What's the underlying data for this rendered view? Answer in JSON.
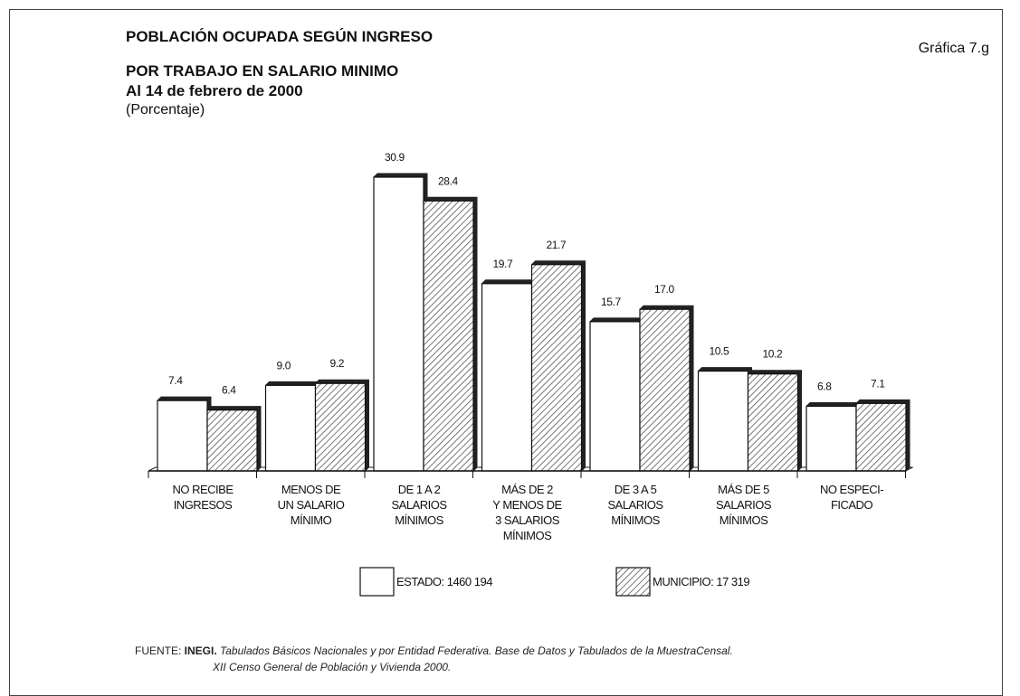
{
  "chart_data": {
    "type": "bar",
    "title": "POBLACIÓN OCUPADA SEGÚN INGRESO",
    "subtitle": [
      "POR TRABAJO  EN SALARIO MINIMO",
      "Al 14 de febrero de 2000"
    ],
    "unit_label": "(Porcentaje)",
    "figure_label": "Gráfica 7.g",
    "categories": [
      "NO RECIBE\nINGRESOS",
      "MENOS DE\nUN SALARIO\nMÍNIMO",
      "DE 1 A 2\nSALARIOS\nMÍNIMOS",
      "MÁS DE 2\nY MENOS DE\n3 SALARIOS\nMÍNIMOS",
      "DE 3 A 5\nSALARIOS\nMÍNIMOS",
      "MÁS DE 5\nSALARIOS\nMÍNIMOS",
      "NO ESPECI-\nFICADO"
    ],
    "series": [
      {
        "name": "ESTADO: 1460 194",
        "color": "#ffffff",
        "values": [
          7.4,
          9.0,
          30.9,
          19.7,
          15.7,
          10.5,
          6.8
        ],
        "value_labels": [
          "7.4",
          "9.0",
          "30.9",
          "19.7",
          "15.7",
          "10.5",
          "6.8"
        ]
      },
      {
        "name": "MUNICIPIO: 17 319",
        "color": "#555555",
        "values": [
          6.4,
          9.2,
          28.4,
          21.7,
          17.0,
          10.2,
          7.1
        ],
        "value_labels": [
          "6.4",
          "9.2",
          "28.4",
          "21.7",
          "17.0",
          "10.2",
          "7.1"
        ]
      }
    ],
    "source": {
      "prefix": "FUENTE: ",
      "org": "INEGI.",
      "text": " Tabulados Básicos Nacionales y por Entidad Federativa. Base de Datos y Tabulados  de la MuestraCensal.",
      "line2": "XII Censo General de Población  y Vivienda  2000."
    }
  }
}
